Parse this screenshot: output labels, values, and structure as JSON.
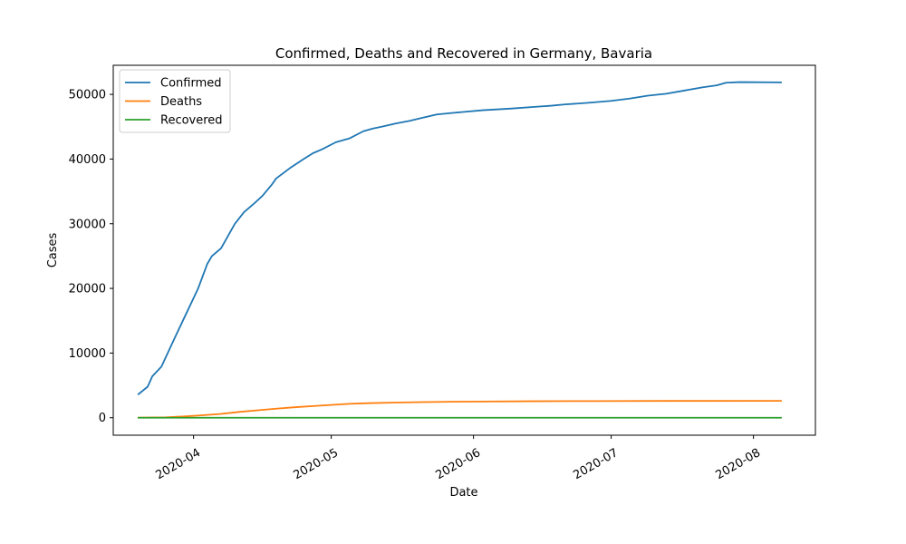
{
  "chart_data": {
    "type": "line",
    "title": "Confirmed, Deaths and Recovered in Germany, Bavaria",
    "xlabel": "Date",
    "ylabel": "Cases",
    "x_start": "2020-03-20",
    "x_end": "2020-08-09",
    "xlim_days": [
      -5.5,
      147.5
    ],
    "ylim": [
      -2700,
      54500
    ],
    "x_ticks": [
      {
        "label": "2020-04",
        "day": 12
      },
      {
        "label": "2020-05",
        "day": 42
      },
      {
        "label": "2020-06",
        "day": 73
      },
      {
        "label": "2020-07",
        "day": 103
      },
      {
        "label": "2020-08",
        "day": 134
      }
    ],
    "y_ticks": [
      0,
      10000,
      20000,
      30000,
      40000,
      50000
    ],
    "legend": {
      "location": "upper-left"
    },
    "series": [
      {
        "name": "Confirmed",
        "color": "#1f77b4",
        "points": [
          [
            0,
            3650
          ],
          [
            2,
            4800
          ],
          [
            3,
            6400
          ],
          [
            5,
            7900
          ],
          [
            8,
            12500
          ],
          [
            10,
            15500
          ],
          [
            13,
            20000
          ],
          [
            15,
            23800
          ],
          [
            16,
            25000
          ],
          [
            18,
            26200
          ],
          [
            21,
            30000
          ],
          [
            23,
            31800
          ],
          [
            25,
            33000
          ],
          [
            27,
            34300
          ],
          [
            29,
            36000
          ],
          [
            30,
            37000
          ],
          [
            33,
            38600
          ],
          [
            36,
            40000
          ],
          [
            38,
            40900
          ],
          [
            40,
            41500
          ],
          [
            43,
            42600
          ],
          [
            46,
            43200
          ],
          [
            49,
            44300
          ],
          [
            51,
            44700
          ],
          [
            53,
            45000
          ],
          [
            56,
            45500
          ],
          [
            59,
            45900
          ],
          [
            62,
            46400
          ],
          [
            65,
            46900
          ],
          [
            68,
            47100
          ],
          [
            71,
            47300
          ],
          [
            75,
            47550
          ],
          [
            81,
            47800
          ],
          [
            87,
            48100
          ],
          [
            90,
            48250
          ],
          [
            93,
            48450
          ],
          [
            98,
            48700
          ],
          [
            103,
            49000
          ],
          [
            107,
            49350
          ],
          [
            111,
            49800
          ],
          [
            115,
            50100
          ],
          [
            119,
            50600
          ],
          [
            123,
            51100
          ],
          [
            126,
            51400
          ],
          [
            128,
            51800
          ],
          [
            131,
            51900
          ],
          [
            140,
            51850
          ]
        ]
      },
      {
        "name": "Deaths",
        "color": "#ff7f0e",
        "points": [
          [
            0,
            20
          ],
          [
            6,
            60
          ],
          [
            10,
            200
          ],
          [
            14,
            380
          ],
          [
            18,
            600
          ],
          [
            22,
            900
          ],
          [
            26,
            1150
          ],
          [
            30,
            1400
          ],
          [
            34,
            1620
          ],
          [
            38,
            1800
          ],
          [
            42,
            1980
          ],
          [
            46,
            2150
          ],
          [
            50,
            2250
          ],
          [
            56,
            2350
          ],
          [
            62,
            2420
          ],
          [
            68,
            2470
          ],
          [
            75,
            2510
          ],
          [
            85,
            2550
          ],
          [
            100,
            2580
          ],
          [
            115,
            2600
          ],
          [
            140,
            2610
          ]
        ]
      },
      {
        "name": "Recovered",
        "color": "#2ca02c",
        "points": [
          [
            0,
            0
          ],
          [
            140,
            0
          ]
        ]
      }
    ]
  }
}
